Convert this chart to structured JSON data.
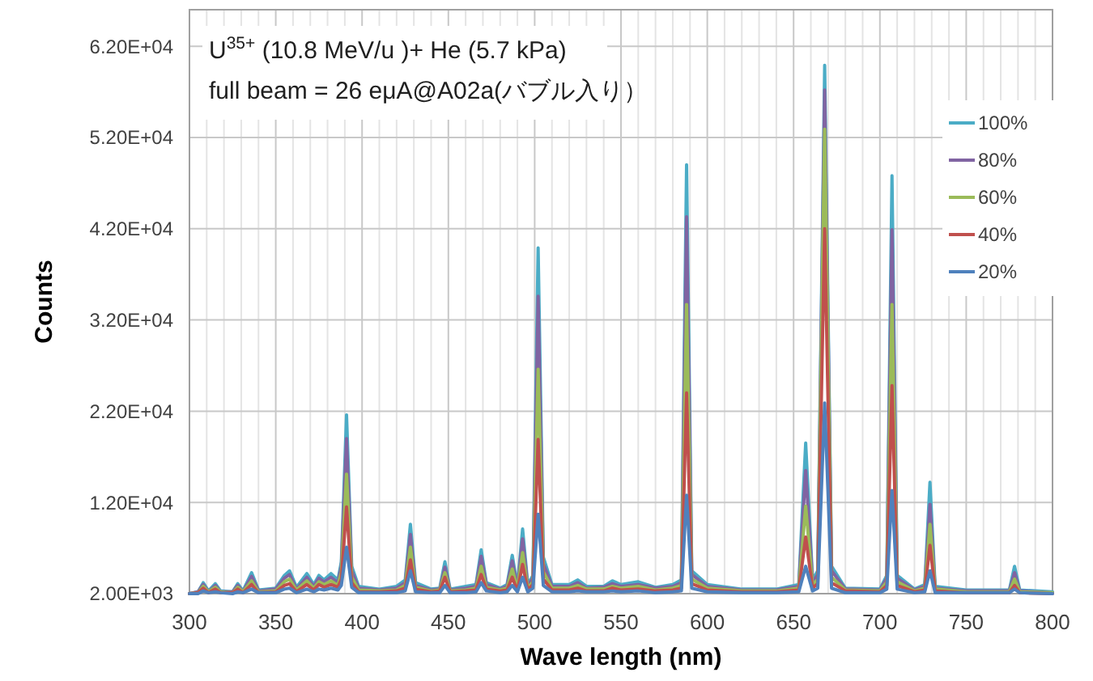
{
  "chart_data": {
    "type": "line",
    "xlabel": "Wave length (nm)",
    "ylabel": "Counts",
    "annotations": [
      "U$^{35+}$ (10.8 MeV/u )+ He (5.7 kPa)",
      "full beam = 26 eμA@A02a(バブル入り）"
    ],
    "x": [
      300,
      305,
      308,
      311,
      315,
      318,
      325,
      328,
      331,
      336,
      340,
      350,
      355,
      358,
      362,
      368,
      372,
      375,
      378,
      382,
      386,
      388,
      391,
      394,
      398,
      410,
      420,
      425,
      428,
      431,
      440,
      445,
      448,
      451,
      460,
      466,
      469,
      472,
      480,
      484,
      487,
      490,
      493,
      496,
      499,
      502,
      505,
      510,
      520,
      525,
      530,
      540,
      545,
      550,
      560,
      570,
      580,
      585,
      588,
      591,
      600,
      620,
      640,
      653,
      657,
      661,
      664,
      668,
      672,
      680,
      700,
      704,
      707,
      710,
      720,
      726,
      729,
      732,
      750,
      775,
      778,
      781,
      800
    ],
    "series": [
      {
        "name": "100%",
        "color": "#4bacc6",
        "values": [
          2000,
          2200,
          3200,
          2300,
          3100,
          2300,
          2200,
          3100,
          2300,
          4300,
          2400,
          2600,
          4000,
          4500,
          2700,
          4200,
          3000,
          4000,
          3500,
          4200,
          3500,
          5500,
          21600,
          5000,
          2800,
          2500,
          2800,
          3500,
          9600,
          3200,
          2500,
          2600,
          5500,
          2500,
          2800,
          3000,
          6800,
          3200,
          2600,
          3000,
          6200,
          2800,
          9100,
          3000,
          4000,
          39900,
          6000,
          3000,
          3000,
          3500,
          2800,
          2800,
          3400,
          3000,
          3300,
          2700,
          3000,
          3500,
          49000,
          4500,
          3000,
          2500,
          2500,
          3000,
          18500,
          3500,
          4500,
          59900,
          5000,
          2600,
          2500,
          4000,
          47800,
          4000,
          2500,
          3000,
          14200,
          2800,
          2400,
          2400,
          5000,
          2400,
          2200
        ]
      },
      {
        "name": "80%",
        "color": "#8064a2",
        "values": [
          2000,
          2200,
          3000,
          2200,
          2900,
          2200,
          2200,
          2900,
          2200,
          3900,
          2300,
          2500,
          3700,
          4100,
          2500,
          3800,
          2800,
          3700,
          3300,
          3800,
          3200,
          5000,
          19000,
          4500,
          2600,
          2400,
          2600,
          3200,
          8500,
          2900,
          2400,
          2500,
          4900,
          2400,
          2600,
          2800,
          6100,
          3000,
          2500,
          2800,
          5600,
          2600,
          8000,
          2800,
          3700,
          34600,
          5300,
          2800,
          2800,
          3200,
          2600,
          2700,
          3100,
          2800,
          3000,
          2600,
          2800,
          3200,
          43300,
          4100,
          2800,
          2400,
          2400,
          2800,
          15500,
          3200,
          4100,
          57200,
          4500,
          2500,
          2400,
          3700,
          41900,
          3700,
          2400,
          2800,
          11800,
          2600,
          2300,
          2300,
          4300,
          2300,
          2100
        ]
      },
      {
        "name": "60%",
        "color": "#9bbb59",
        "values": [
          2000,
          2100,
          2800,
          2200,
          2700,
          2200,
          2100,
          2700,
          2200,
          3400,
          2200,
          2300,
          3300,
          3600,
          2400,
          3400,
          2600,
          3300,
          3000,
          3400,
          2900,
          4300,
          15100,
          3800,
          2400,
          2300,
          2400,
          2900,
          7100,
          2700,
          2300,
          2400,
          4300,
          2300,
          2400,
          2600,
          5000,
          2700,
          2400,
          2600,
          4700,
          2500,
          6500,
          2600,
          3300,
          26600,
          4400,
          2600,
          2600,
          2900,
          2500,
          2500,
          2800,
          2600,
          2800,
          2400,
          2600,
          2900,
          33700,
          3600,
          2600,
          2300,
          2300,
          2600,
          11600,
          2900,
          3600,
          52900,
          3800,
          2400,
          2300,
          3300,
          33700,
          3300,
          2300,
          2600,
          9600,
          2500,
          2200,
          2200,
          3600,
          2200,
          2100
        ]
      },
      {
        "name": "40%",
        "color": "#c0504d",
        "values": [
          2000,
          2100,
          2600,
          2100,
          2500,
          2100,
          2100,
          2500,
          2100,
          3000,
          2100,
          2200,
          2900,
          3100,
          2200,
          3000,
          2400,
          3000,
          2700,
          3000,
          2700,
          3600,
          11500,
          3200,
          2200,
          2200,
          2300,
          2600,
          5700,
          2500,
          2200,
          2300,
          3800,
          2200,
          2300,
          2400,
          4100,
          2500,
          2300,
          2400,
          3800,
          2300,
          5200,
          2400,
          3000,
          18900,
          3600,
          2400,
          2400,
          2600,
          2300,
          2300,
          2600,
          2400,
          2500,
          2300,
          2400,
          2600,
          24000,
          3100,
          2400,
          2200,
          2200,
          2400,
          8200,
          2600,
          3100,
          42000,
          3200,
          2300,
          2200,
          2900,
          24800,
          2900,
          2200,
          2400,
          7300,
          2300,
          2100,
          2100,
          2900,
          2100,
          2000
        ]
      },
      {
        "name": "20%",
        "color": "#4f81bd",
        "values": [
          2000,
          2000,
          2300,
          2100,
          2200,
          2100,
          2000,
          2200,
          2100,
          2500,
          2100,
          2100,
          2500,
          2600,
          2100,
          2500,
          2200,
          2500,
          2400,
          2600,
          2400,
          2900,
          7100,
          2700,
          2100,
          2100,
          2100,
          2300,
          4500,
          2200,
          2100,
          2100,
          2900,
          2100,
          2100,
          2200,
          3200,
          2300,
          2100,
          2200,
          2900,
          2200,
          3800,
          2200,
          2600,
          10700,
          2900,
          2200,
          2200,
          2300,
          2200,
          2200,
          2300,
          2200,
          2300,
          2100,
          2200,
          2300,
          12800,
          2600,
          2200,
          2100,
          2100,
          2200,
          5000,
          2300,
          2600,
          22900,
          2600,
          2100,
          2100,
          2500,
          13300,
          2500,
          2100,
          2200,
          4500,
          2100,
          2100,
          2100,
          2500,
          2100,
          2000
        ]
      }
    ],
    "xlim": [
      300,
      800
    ],
    "ylim": [
      2000,
      66000
    ],
    "xticks": [
      300,
      {
        "value": 310,
        "label": null
      },
      {
        "value": 320,
        "label": null
      },
      {
        "value": 330,
        "label": null
      },
      {
        "value": 340,
        "label": null
      },
      350,
      {
        "value": 360,
        "label": null
      },
      {
        "value": 370,
        "label": null
      },
      {
        "value": 380,
        "label": null
      },
      {
        "value": 390,
        "label": null
      },
      400,
      {
        "value": 410,
        "label": null
      },
      {
        "value": 420,
        "label": null
      },
      {
        "value": 430,
        "label": null
      },
      {
        "value": 440,
        "label": null
      },
      450,
      {
        "value": 460,
        "label": null
      },
      {
        "value": 470,
        "label": null
      },
      {
        "value": 480,
        "label": null
      },
      {
        "value": 490,
        "label": null
      },
      500,
      {
        "value": 510,
        "label": null
      },
      {
        "value": 520,
        "label": null
      },
      {
        "value": 530,
        "label": null
      },
      {
        "value": 540,
        "label": null
      },
      550,
      {
        "value": 560,
        "label": null
      },
      {
        "value": 570,
        "label": null
      },
      {
        "value": 580,
        "label": null
      },
      {
        "value": 590,
        "label": null
      },
      600,
      {
        "value": 610,
        "label": null
      },
      {
        "value": 620,
        "label": null
      },
      {
        "value": 630,
        "label": null
      },
      {
        "value": 640,
        "label": null
      },
      650,
      {
        "value": 660,
        "label": null
      },
      {
        "value": 670,
        "label": null
      },
      {
        "value": 680,
        "label": null
      },
      {
        "value": 690,
        "label": null
      },
      700,
      {
        "value": 710,
        "label": null
      },
      {
        "value": 720,
        "label": null
      },
      {
        "value": 730,
        "label": null
      },
      {
        "value": 740,
        "label": null
      },
      750,
      {
        "value": 760,
        "label": null
      },
      {
        "value": 770,
        "label": null
      },
      {
        "value": 780,
        "label": null
      },
      {
        "value": 790,
        "label": null
      },
      800
    ],
    "yticks": [
      {
        "value": 2000,
        "label": "2.00E+03"
      },
      {
        "value": 12000,
        "label": "1.20E+04"
      },
      {
        "value": 22000,
        "label": "2.20E+04"
      },
      {
        "value": 32000,
        "label": "3.20E+04"
      },
      {
        "value": 42000,
        "label": "4.20E+04"
      },
      {
        "value": 52000,
        "label": "5.20E+04"
      },
      {
        "value": 62000,
        "label": "6.20E+04"
      }
    ],
    "grid": true,
    "legend": "top right",
    "marker": "none",
    "line_style": "solid"
  }
}
